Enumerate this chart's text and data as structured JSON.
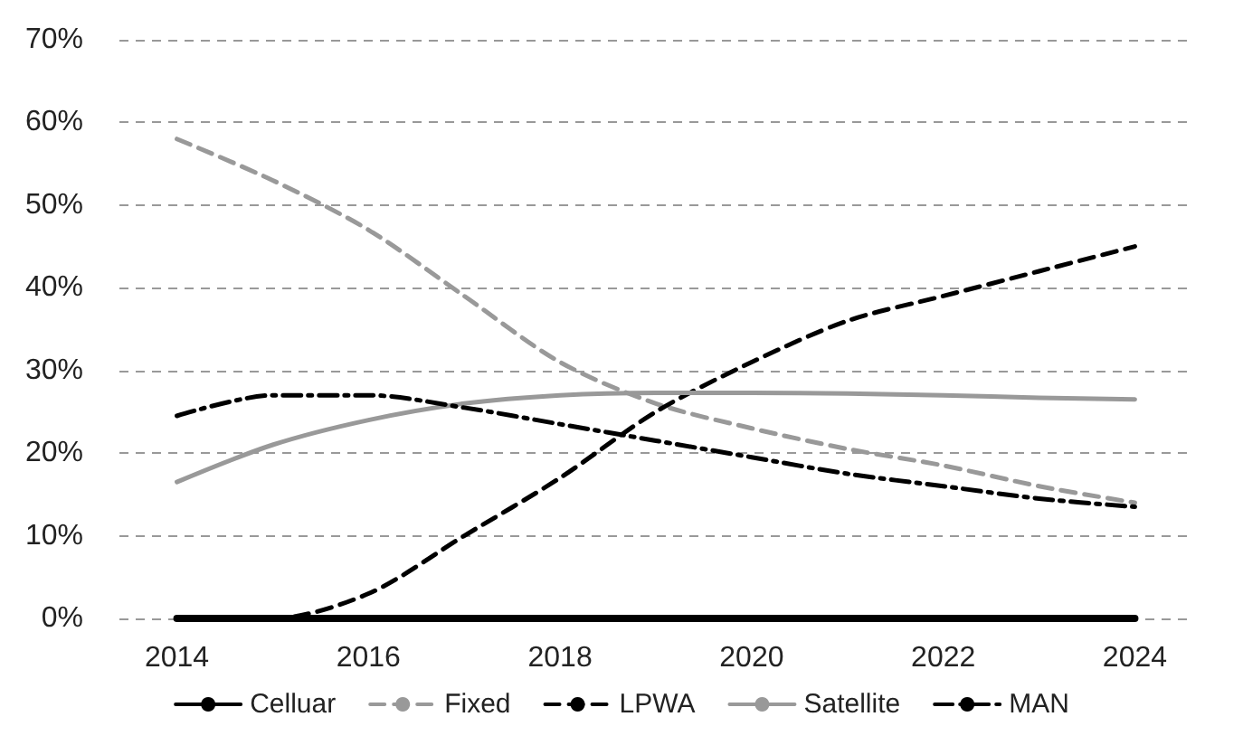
{
  "chart_data": {
    "type": "line",
    "x": [
      2014,
      2015,
      2016,
      2017,
      2018,
      2019,
      2020,
      2021,
      2022,
      2023,
      2024
    ],
    "series": [
      {
        "name": "Celluar",
        "color": "#000000",
        "line_style": "solid",
        "values": [
          0,
          0,
          0,
          0,
          0,
          0,
          0,
          0,
          0,
          0,
          0
        ]
      },
      {
        "name": "Fixed",
        "color": "#999999",
        "line_style": "dashed",
        "values": [
          58,
          53,
          47,
          39,
          31,
          26,
          23,
          20.5,
          18.5,
          16,
          14
        ]
      },
      {
        "name": "LPWA",
        "color": "#000000",
        "line_style": "dashed",
        "values": [
          0,
          0,
          3,
          10,
          17,
          25,
          31,
          36,
          39,
          42,
          45
        ]
      },
      {
        "name": "Satellite",
        "color": "#999999",
        "line_style": "solid",
        "values": [
          16.5,
          21,
          24,
          26,
          27,
          27.3,
          27.3,
          27.2,
          27,
          26.7,
          26.5
        ]
      },
      {
        "name": "MAN",
        "color": "#000000",
        "line_style": "dashdot",
        "values": [
          24.5,
          27,
          27,
          25.5,
          23.5,
          21.5,
          19.5,
          17.5,
          16,
          14.5,
          13.5
        ]
      }
    ],
    "xlim": [
      2013.4,
      2024.6
    ],
    "xticks": [
      2014,
      2016,
      2018,
      2020,
      2022,
      2024
    ],
    "ylim": [
      0,
      70
    ],
    "yticks": [
      {
        "value": 0,
        "label": "0%"
      },
      {
        "value": 10,
        "label": "10%"
      },
      {
        "value": 20,
        "label": "20%"
      },
      {
        "value": 30,
        "label": "30%"
      },
      {
        "value": 40,
        "label": "40%"
      },
      {
        "value": 50,
        "label": "50%"
      },
      {
        "value": 60,
        "label": "60%"
      },
      {
        "value": 70,
        "label": "70%"
      }
    ],
    "grid": "y",
    "legend": "bottom",
    "marker": "none"
  }
}
